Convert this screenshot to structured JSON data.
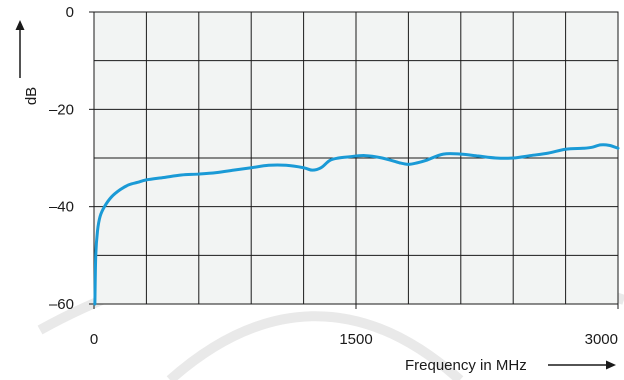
{
  "chart_data": {
    "type": "line",
    "xlabel": "Frequency in MHz",
    "ylabel": "dB",
    "xlim": [
      0,
      3000
    ],
    "ylim": [
      -60,
      0
    ],
    "x_ticks": [
      0,
      1500,
      3000
    ],
    "x_tick_labels": [
      "0",
      "1500",
      "3000"
    ],
    "y_ticks": [
      0,
      -20,
      -40,
      -60
    ],
    "y_tick_labels": [
      "0",
      "–20",
      "–40",
      "–60"
    ],
    "grid": true,
    "grid_divisions": {
      "x": 10,
      "y": 6
    },
    "series": [
      {
        "color": "#1a9ad6",
        "x": [
          5,
          10,
          20,
          35,
          60,
          100,
          150,
          200,
          250,
          300,
          400,
          500,
          600,
          700,
          800,
          900,
          1000,
          1100,
          1200,
          1250,
          1300,
          1350,
          1400,
          1450,
          1550,
          1650,
          1750,
          1800,
          1850,
          1900,
          2000,
          2100,
          2200,
          2300,
          2400,
          2500,
          2600,
          2700,
          2800,
          2850,
          2900,
          2950,
          3000
        ],
        "y": [
          -60,
          -50,
          -45,
          -42,
          -40,
          -38,
          -36.5,
          -35.5,
          -35,
          -34.5,
          -34,
          -33.5,
          -33.3,
          -33,
          -32.5,
          -32,
          -31.5,
          -31.5,
          -32,
          -32.5,
          -32,
          -30.5,
          -30,
          -29.8,
          -29.5,
          -30,
          -31,
          -31.3,
          -31,
          -30.5,
          -29.2,
          -29.2,
          -29.6,
          -30,
          -30,
          -29.5,
          -29,
          -28.2,
          -28,
          -27.8,
          -27.3,
          -27.4,
          -28
        ]
      }
    ]
  },
  "decor": {
    "background_color": "#ffffff",
    "plot_fill": "#f2f4f3",
    "grid_color": "#1a1a1a",
    "watermark_color": "#e9e9e9"
  }
}
